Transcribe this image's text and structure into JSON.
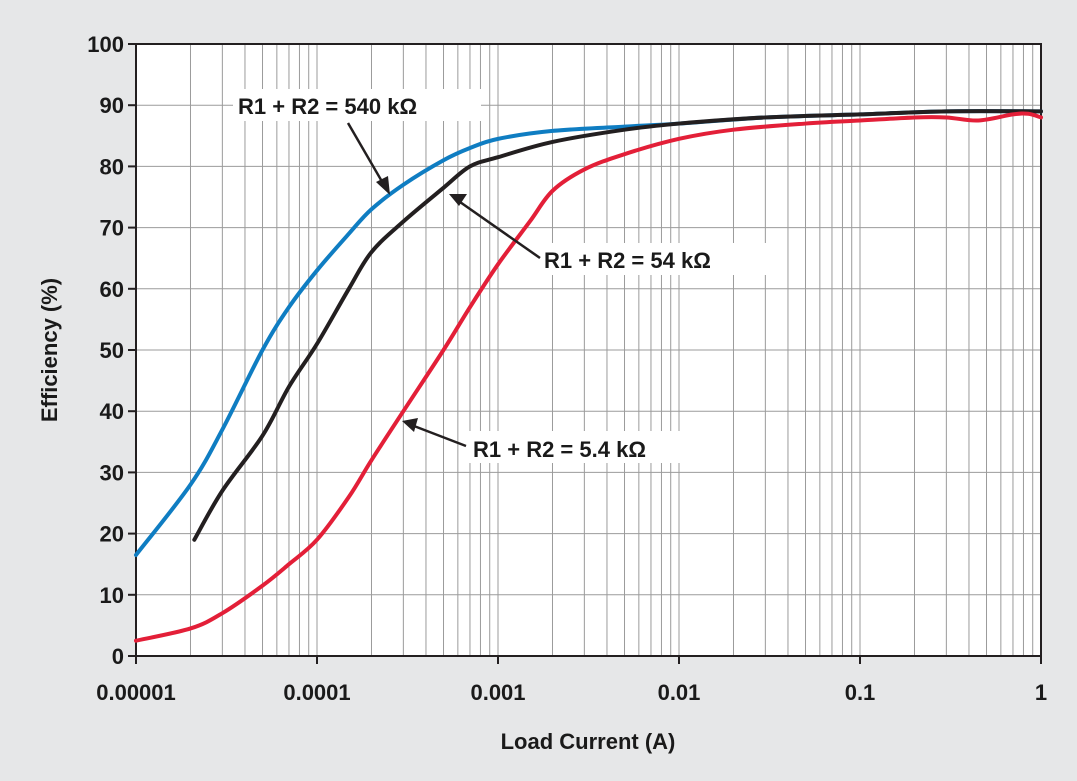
{
  "chart_data": {
    "type": "line",
    "xscale": "log",
    "xlabel": "Load Current (A)",
    "ylabel": "Efficiency (%)",
    "xlim": [
      1e-05,
      1
    ],
    "ylim": [
      0,
      100
    ],
    "grid": true,
    "x_tick_labels": [
      "0.00001",
      "0.0001",
      "0.001",
      "0.01",
      "0.1",
      "1"
    ],
    "y_tick_labels": [
      "0",
      "10",
      "20",
      "30",
      "40",
      "50",
      "60",
      "70",
      "80",
      "90",
      "100"
    ],
    "series": [
      {
        "name": "R1 + R2 = 540 kΩ",
        "color": "#0f7dc2",
        "points": [
          [
            1e-05,
            16.5
          ],
          [
            2e-05,
            28
          ],
          [
            3e-05,
            37
          ],
          [
            5e-05,
            50
          ],
          [
            7e-05,
            57
          ],
          [
            0.0001,
            63
          ],
          [
            0.00015,
            69
          ],
          [
            0.0002,
            73
          ],
          [
            0.0003,
            77
          ],
          [
            0.0005,
            81
          ],
          [
            0.0007,
            83
          ],
          [
            0.001,
            84.5
          ],
          [
            0.002,
            85.8
          ],
          [
            0.005,
            86.5
          ],
          [
            0.01,
            87
          ],
          [
            0.03,
            88
          ],
          [
            0.1,
            88.5
          ],
          [
            0.3,
            89
          ],
          [
            1,
            89
          ]
        ]
      },
      {
        "name": "R1 + R2 = 54 kΩ",
        "color": "#231f20",
        "points": [
          [
            2.1e-05,
            19
          ],
          [
            3e-05,
            27
          ],
          [
            5e-05,
            36
          ],
          [
            7e-05,
            44
          ],
          [
            0.0001,
            51
          ],
          [
            0.00015,
            60
          ],
          [
            0.0002,
            66
          ],
          [
            0.0003,
            71
          ],
          [
            0.0005,
            76.5
          ],
          [
            0.0007,
            80
          ],
          [
            0.001,
            81.5
          ],
          [
            0.002,
            84
          ],
          [
            0.005,
            86
          ],
          [
            0.01,
            87
          ],
          [
            0.03,
            88
          ],
          [
            0.1,
            88.5
          ],
          [
            0.3,
            89
          ],
          [
            1,
            89
          ]
        ]
      },
      {
        "name": "R1 + R2 = 5.4 kΩ",
        "color": "#e31f38",
        "points": [
          [
            1e-05,
            2.5
          ],
          [
            2e-05,
            4.5
          ],
          [
            3e-05,
            7
          ],
          [
            5e-05,
            11.5
          ],
          [
            7e-05,
            15
          ],
          [
            0.0001,
            19
          ],
          [
            0.00015,
            26
          ],
          [
            0.0002,
            32
          ],
          [
            0.0003,
            40
          ],
          [
            0.0005,
            50
          ],
          [
            0.0007,
            57
          ],
          [
            0.001,
            64
          ],
          [
            0.0015,
            71
          ],
          [
            0.002,
            76
          ],
          [
            0.003,
            79.5
          ],
          [
            0.005,
            82
          ],
          [
            0.01,
            84.5
          ],
          [
            0.02,
            86
          ],
          [
            0.05,
            87
          ],
          [
            0.1,
            87.5
          ],
          [
            0.2,
            88
          ],
          [
            0.3,
            88
          ],
          [
            0.45,
            87.5
          ],
          [
            0.7,
            88.5
          ],
          [
            0.85,
            88.6
          ],
          [
            1,
            88
          ]
        ]
      }
    ],
    "annotations": [
      {
        "text": "R1 + R2 = 540 kΩ",
        "series": 0
      },
      {
        "text": "R1 + R2 = 54 kΩ",
        "series": 1
      },
      {
        "text": "R1 + R2 = 5.4 kΩ",
        "series": 2
      }
    ]
  }
}
